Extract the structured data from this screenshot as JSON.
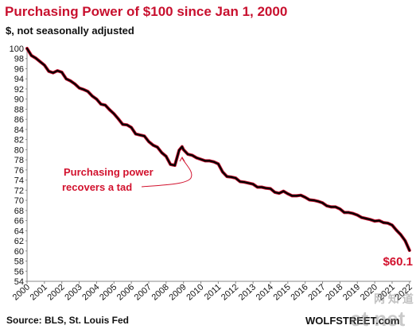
{
  "chart_data": {
    "type": "line",
    "title": "Purchasing  Power of $100 since Jan 1, 2000",
    "subtitle": "$, not seasonally adjusted",
    "xlabel": "",
    "ylabel": "",
    "xlim": [
      2000,
      2022.1
    ],
    "ylim": [
      54,
      100
    ],
    "y_ticks": [
      54,
      56,
      58,
      60,
      62,
      64,
      66,
      68,
      70,
      72,
      74,
      76,
      78,
      80,
      82,
      84,
      86,
      88,
      90,
      92,
      94,
      96,
      98,
      100
    ],
    "x_ticks": [
      "2000",
      "2001",
      "2002",
      "2003",
      "2004",
      "2005",
      "2006",
      "2007",
      "2008",
      "2009",
      "2010",
      "2011",
      "2012",
      "2013",
      "2014",
      "2015",
      "2016",
      "2017",
      "2018",
      "2019",
      "2020",
      "2021",
      "2022"
    ],
    "grid": false,
    "legend": "none",
    "line_color": "#000000",
    "highlight_color": "#c8102e",
    "annotation": {
      "lines": [
        "Purchasing power",
        "recovers a tad"
      ],
      "x": 2008.9,
      "y": 80.2
    },
    "end_label": "$60.1",
    "series": [
      {
        "x": [
          2000.0,
          2000.25,
          2000.5,
          2000.75,
          2001.0,
          2001.25,
          2001.5,
          2001.75,
          2002.0,
          2002.25,
          2002.5,
          2002.75,
          2003.0,
          2003.25,
          2003.5,
          2003.75,
          2004.0,
          2004.25,
          2004.5,
          2004.75,
          2005.0,
          2005.25,
          2005.5,
          2005.75,
          2006.0,
          2006.25,
          2006.5,
          2006.75,
          2007.0,
          2007.25,
          2007.5,
          2007.75,
          2008.0,
          2008.25,
          2008.5,
          2008.75,
          2008.92,
          2009.0,
          2009.25,
          2009.5,
          2009.75,
          2010.0,
          2010.25,
          2010.5,
          2010.75,
          2011.0,
          2011.25,
          2011.5,
          2011.75,
          2012.0,
          2012.25,
          2012.5,
          2012.75,
          2013.0,
          2013.25,
          2013.5,
          2013.75,
          2014.0,
          2014.25,
          2014.5,
          2014.75,
          2015.0,
          2015.25,
          2015.5,
          2015.75,
          2016.0,
          2016.25,
          2016.5,
          2016.75,
          2017.0,
          2017.25,
          2017.5,
          2017.75,
          2018.0,
          2018.25,
          2018.5,
          2018.75,
          2019.0,
          2019.25,
          2019.5,
          2019.75,
          2020.0,
          2020.25,
          2020.5,
          2020.75,
          2021.0,
          2021.25,
          2021.5,
          2021.75,
          2022.0
        ],
        "values": [
          100.0,
          98.6,
          98.1,
          97.4,
          96.7,
          95.5,
          95.2,
          95.6,
          95.3,
          94.0,
          93.6,
          93.0,
          92.2,
          91.9,
          91.5,
          90.6,
          90.0,
          89.0,
          88.8,
          87.9,
          87.1,
          86.1,
          85.0,
          84.9,
          84.4,
          83.1,
          82.9,
          82.7,
          81.6,
          80.9,
          80.5,
          79.4,
          78.7,
          77.1,
          76.9,
          79.9,
          80.6,
          80.0,
          79.1,
          78.9,
          78.4,
          78.1,
          77.8,
          77.8,
          77.6,
          77.2,
          75.6,
          74.7,
          74.6,
          74.4,
          73.7,
          73.6,
          73.4,
          73.2,
          72.6,
          72.6,
          72.4,
          72.3,
          71.6,
          71.4,
          71.8,
          71.3,
          70.9,
          70.9,
          71.0,
          70.6,
          70.1,
          70.0,
          69.8,
          69.5,
          68.9,
          68.7,
          68.7,
          68.3,
          67.6,
          67.6,
          67.4,
          67.1,
          66.6,
          66.4,
          66.2,
          65.9,
          66.0,
          65.6,
          65.5,
          65.1,
          64.1,
          63.2,
          62.0,
          60.1
        ]
      }
    ]
  },
  "source": "Source: BLS, St. Louis Fed",
  "watermark": {
    "left": "WOLF",
    "right": "STREET",
    "suffix": ".com",
    "overlay_cn": "网 知 道",
    "overlay_brand": "et net"
  }
}
